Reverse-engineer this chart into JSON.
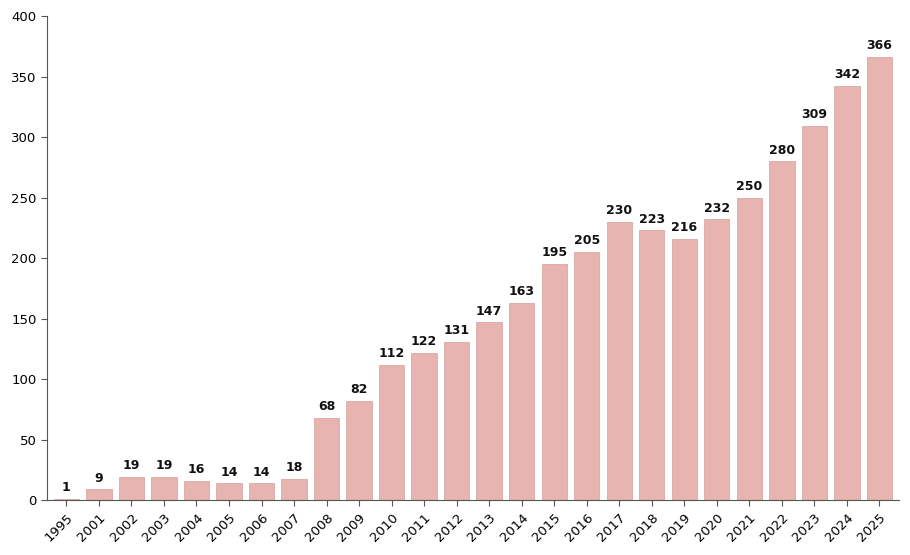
{
  "categories": [
    "1995",
    "2001",
    "2002",
    "2003",
    "2004",
    "2005",
    "2006",
    "2007",
    "2008",
    "2009",
    "2010",
    "2011",
    "2012",
    "2013",
    "2014",
    "2015",
    "2016",
    "2017",
    "2018",
    "2019",
    "2020",
    "2021",
    "2022",
    "2023",
    "2024",
    "2025"
  ],
  "values": [
    1,
    9,
    19,
    19,
    16,
    14,
    14,
    18,
    68,
    82,
    112,
    122,
    131,
    147,
    163,
    195,
    205,
    230,
    223,
    216,
    232,
    250,
    280,
    309,
    342,
    366
  ],
  "bar_color": "#e8b4b0",
  "bar_edgecolor": "#c9908c",
  "ylim": [
    0,
    400
  ],
  "yticks": [
    0,
    50,
    100,
    150,
    200,
    250,
    300,
    350,
    400
  ],
  "tick_fontsize": 9.5,
  "value_label_fontsize": 9,
  "background_color": "#ffffff",
  "axis_color": "#555555",
  "bar_width": 0.78
}
